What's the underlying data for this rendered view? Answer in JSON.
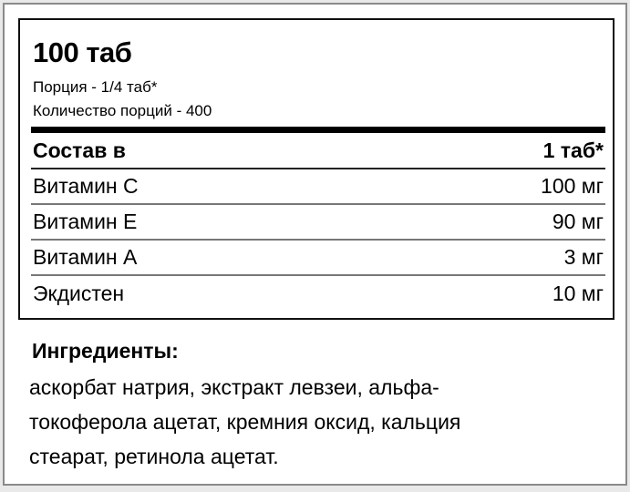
{
  "label": {
    "title": "100 таб",
    "serving": "Порция - 1/4 таб*",
    "servings_count": "Количество порций - 400",
    "table_header": {
      "left": "Состав в",
      "right": "1 таб*"
    },
    "rows": [
      {
        "name": "Витамин С",
        "amount": "100 мг"
      },
      {
        "name": "Витамин Е",
        "amount": "90 мг"
      },
      {
        "name": "Витамин А",
        "amount": "3 мг"
      },
      {
        "name": "Экдистен",
        "amount": "10 мг"
      }
    ],
    "ingredients_title": "Ингредиенты:",
    "ingredients_lines": [
      "аскорбат натрия, экстракт левзеи, альфа-",
      "токоферола ацетат, кремния оксид, кальция",
      "стеарат, ретинола ацетат."
    ]
  }
}
